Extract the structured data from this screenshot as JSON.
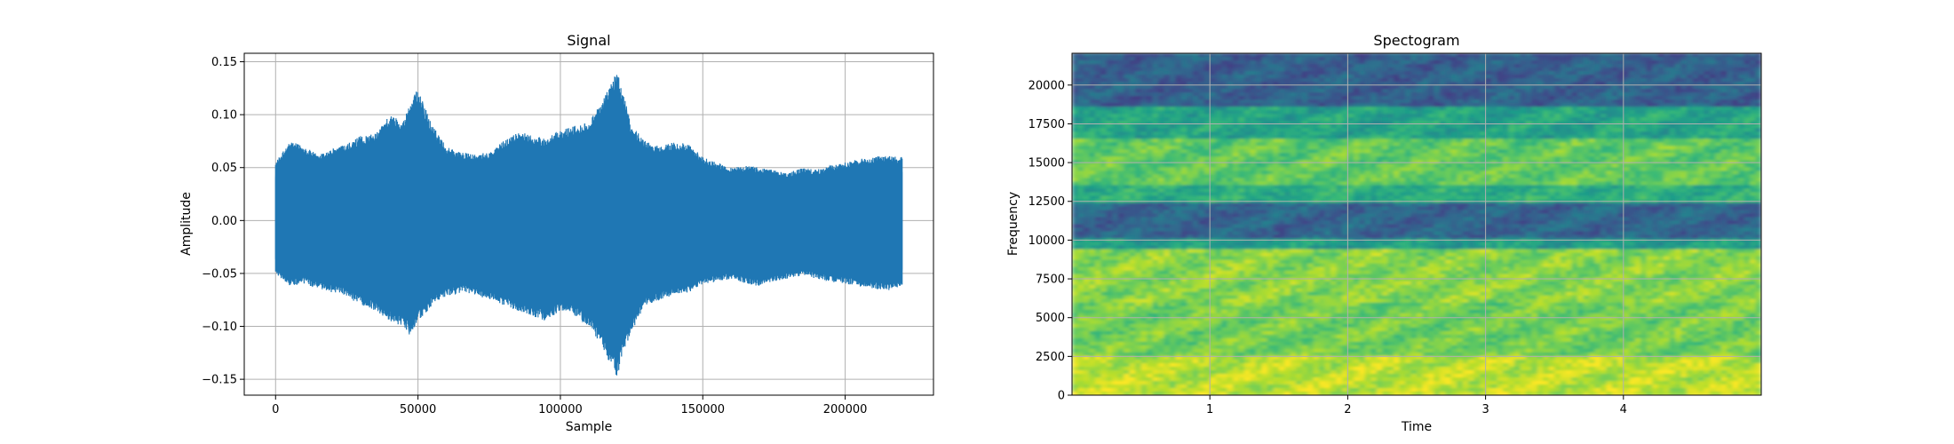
{
  "colors": {
    "signal_line": "#1f77b4",
    "grid": "#b0b0b0",
    "spectrogram_map": "viridis"
  },
  "chart_data": [
    {
      "type": "line",
      "title": "Signal",
      "xlabel": "Sample",
      "ylabel": "Amplitude",
      "xlim": [
        -11000,
        231000
      ],
      "ylim": [
        -0.165,
        0.158
      ],
      "xticks": [
        0,
        50000,
        100000,
        150000,
        200000
      ],
      "xtick_labels": [
        "0",
        "50000",
        "100000",
        "150000",
        "200000"
      ],
      "yticks": [
        -0.15,
        -0.1,
        -0.05,
        0.0,
        0.05,
        0.1,
        0.15
      ],
      "ytick_labels": [
        "−0.15",
        "−0.10",
        "−0.05",
        "0.00",
        "0.05",
        "0.10",
        "0.15"
      ],
      "grid": true,
      "series": [
        {
          "x": [
            0,
            5000,
            10000,
            15000,
            20000,
            25000,
            30000,
            35000,
            40000,
            45000,
            47000,
            50000,
            52000,
            55000,
            60000,
            65000,
            70000,
            75000,
            80000,
            85000,
            90000,
            95000,
            100000,
            105000,
            110000,
            115000,
            118000,
            120000,
            122000,
            125000,
            130000,
            135000,
            140000,
            145000,
            150000,
            155000,
            160000,
            165000,
            170000,
            175000,
            180000,
            185000,
            190000,
            195000,
            200000,
            205000,
            210000,
            215000,
            220000
          ],
          "max": [
            0.055,
            0.075,
            0.07,
            0.062,
            0.068,
            0.072,
            0.08,
            0.082,
            0.1,
            0.095,
            0.11,
            0.125,
            0.11,
            0.09,
            0.07,
            0.065,
            0.062,
            0.065,
            0.075,
            0.085,
            0.08,
            0.078,
            0.085,
            0.09,
            0.095,
            0.115,
            0.13,
            0.143,
            0.12,
            0.09,
            0.075,
            0.07,
            0.075,
            0.072,
            0.06,
            0.055,
            0.05,
            0.052,
            0.05,
            0.048,
            0.045,
            0.05,
            0.048,
            0.052,
            0.055,
            0.058,
            0.06,
            0.062,
            0.06
          ],
          "min": [
            -0.05,
            -0.062,
            -0.06,
            -0.065,
            -0.068,
            -0.072,
            -0.08,
            -0.085,
            -0.095,
            -0.1,
            -0.108,
            -0.095,
            -0.09,
            -0.08,
            -0.072,
            -0.068,
            -0.07,
            -0.075,
            -0.08,
            -0.085,
            -0.09,
            -0.095,
            -0.085,
            -0.09,
            -0.1,
            -0.12,
            -0.14,
            -0.148,
            -0.125,
            -0.105,
            -0.08,
            -0.075,
            -0.07,
            -0.068,
            -0.06,
            -0.058,
            -0.055,
            -0.06,
            -0.062,
            -0.058,
            -0.055,
            -0.052,
            -0.055,
            -0.058,
            -0.06,
            -0.062,
            -0.065,
            -0.066,
            -0.062
          ]
        }
      ]
    },
    {
      "type": "heatmap",
      "title": "Spectogram",
      "xlabel": "Time",
      "ylabel": "Frequency",
      "xlim": [
        0,
        5.0
      ],
      "ylim": [
        0,
        22050
      ],
      "xticks": [
        1,
        2,
        3,
        4
      ],
      "xtick_labels": [
        "1",
        "2",
        "3",
        "4"
      ],
      "yticks": [
        0,
        2500,
        5000,
        7500,
        10000,
        12500,
        15000,
        17500,
        20000
      ],
      "ytick_labels": [
        "0",
        "2500",
        "5000",
        "7500",
        "10000",
        "12500",
        "15000",
        "17500",
        "20000"
      ],
      "grid": true,
      "frequency_bands": [
        {
          "from": 0,
          "to": 2500,
          "level": 0.9
        },
        {
          "from": 2500,
          "to": 6000,
          "level": 0.78
        },
        {
          "from": 6000,
          "to": 9500,
          "level": 0.82
        },
        {
          "from": 9500,
          "to": 10000,
          "level": 0.55
        },
        {
          "from": 10000,
          "to": 12500,
          "level": 0.32
        },
        {
          "from": 12500,
          "to": 13500,
          "level": 0.62
        },
        {
          "from": 13500,
          "to": 16500,
          "level": 0.75
        },
        {
          "from": 16500,
          "to": 18500,
          "level": 0.58
        },
        {
          "from": 18500,
          "to": 22050,
          "level": 0.3
        }
      ]
    }
  ]
}
